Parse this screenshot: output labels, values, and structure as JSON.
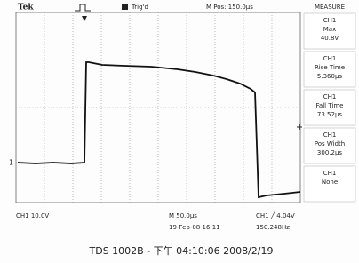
{
  "header": {
    "brand": "Tek",
    "trigger_status": "Trig'd",
    "m_pos": "M Pos: 150.0µs"
  },
  "measure": {
    "title": "MEASURE",
    "items": [
      {
        "source": "CH1",
        "label": "Max",
        "value": "40.8V"
      },
      {
        "source": "CH1",
        "label": "Rise Time",
        "value": "5.360µs"
      },
      {
        "source": "CH1",
        "label": "Fall Time",
        "value": "73.52µs"
      },
      {
        "source": "CH1",
        "label": "Pos Width",
        "value": "300.2µs"
      },
      {
        "source": "CH1",
        "label": "None"
      }
    ]
  },
  "marker": "1",
  "status": {
    "ch1_scale": "CH1  10.0V",
    "timebase": "M 50.0µs",
    "datetime": "19-Feb-08 16:11",
    "trigger": "CH1 ╱ 4.04V",
    "frequency": "150.248Hz"
  },
  "caption": "TDS 1002B - 下午 04:10:06   2008/2/19"
}
